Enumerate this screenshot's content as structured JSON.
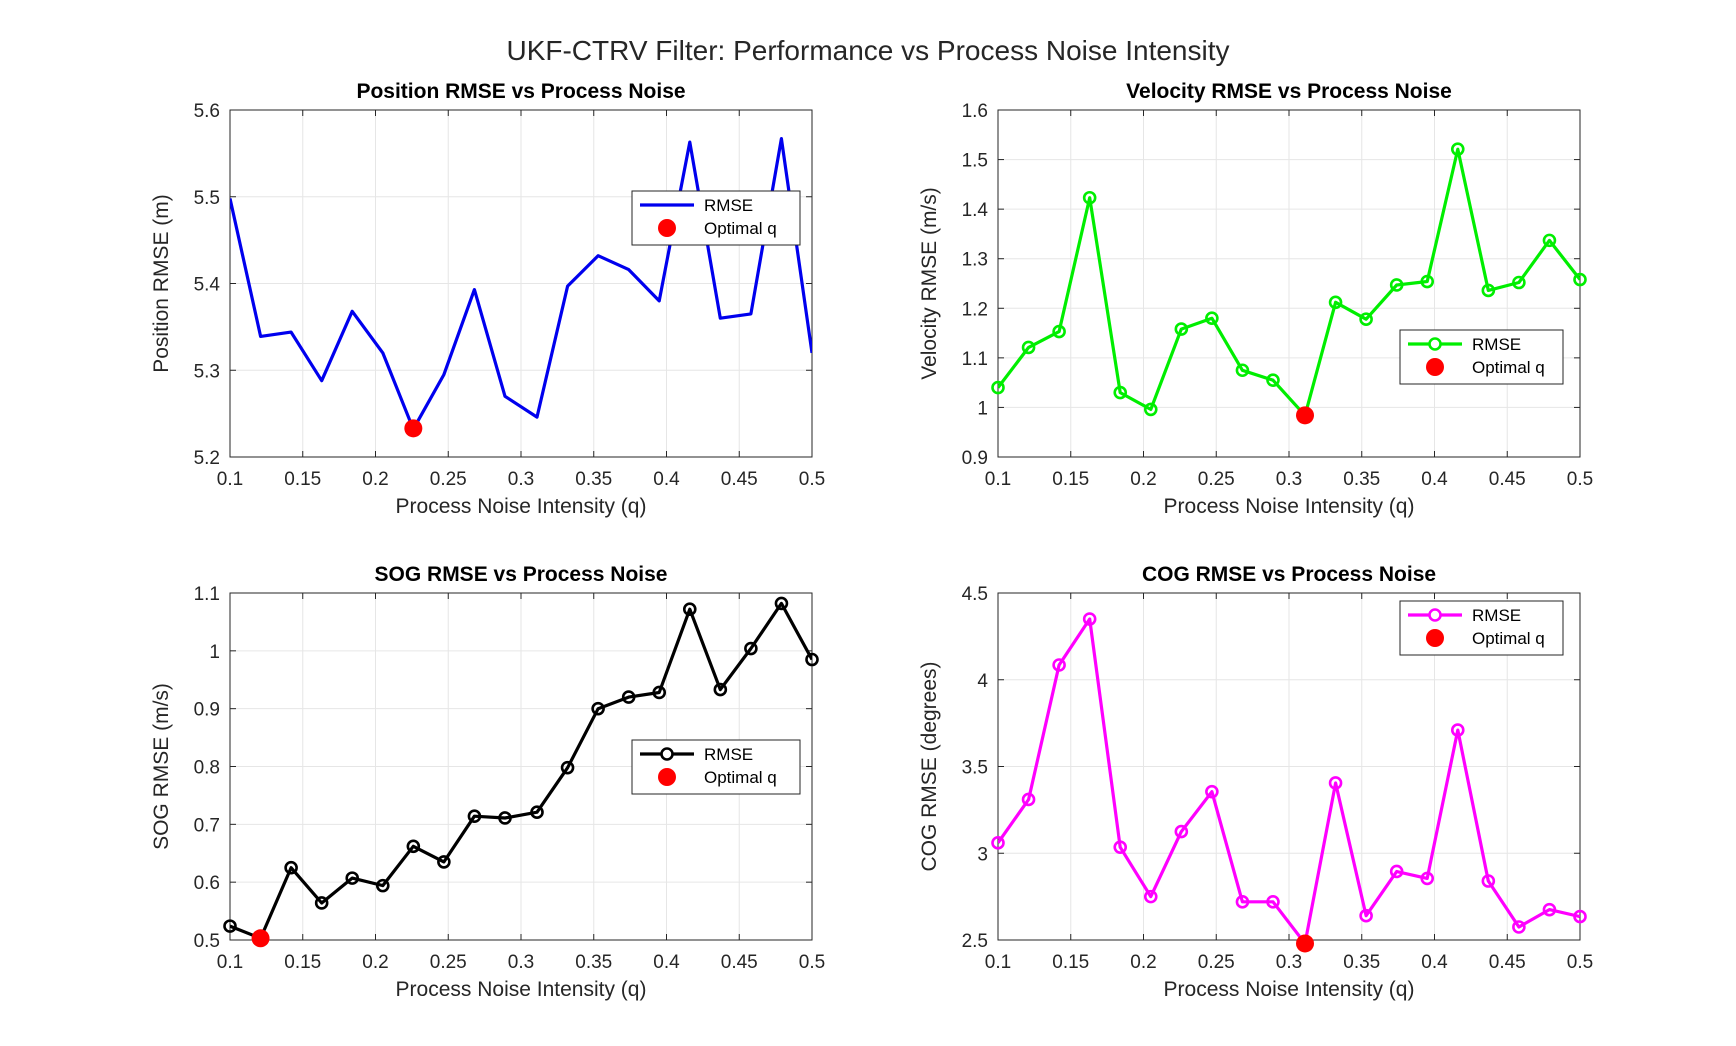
{
  "figure": {
    "title": "UKF-CTRV Filter: Performance vs Process Noise Intensity"
  },
  "chart_data": [
    {
      "type": "line",
      "id": "position",
      "title": "Position RMSE vs Process Noise",
      "xlabel": "Process Noise Intensity (q)",
      "ylabel": "Position RMSE (m)",
      "xlim": [
        0.1,
        0.5
      ],
      "ylim": [
        5.2,
        5.6
      ],
      "xticks": [
        0.1,
        0.15,
        0.2,
        0.25,
        0.3,
        0.35,
        0.4,
        0.45,
        0.5
      ],
      "xtick_labels": [
        "0.1",
        "0.15",
        "0.2",
        "0.25",
        "0.3",
        "0.35",
        "0.4",
        "0.45",
        "0.5"
      ],
      "yticks": [
        5.2,
        5.3,
        5.4,
        5.5,
        5.6
      ],
      "ytick_labels": [
        "5.2",
        "5.3",
        "5.4",
        "5.5",
        "5.6"
      ],
      "grid": true,
      "legend_position": "upper-right",
      "x": [
        0.1,
        0.121,
        0.142,
        0.163,
        0.184,
        0.205,
        0.226,
        0.247,
        0.268,
        0.289,
        0.311,
        0.332,
        0.353,
        0.374,
        0.395,
        0.416,
        0.437,
        0.458,
        0.479,
        0.5
      ],
      "series": [
        {
          "name": "RMSE",
          "color": "#0000ee",
          "marker": "none",
          "values": [
            5.498,
            5.339,
            5.344,
            5.288,
            5.368,
            5.32,
            5.232,
            5.295,
            5.393,
            5.27,
            5.246,
            5.397,
            5.432,
            5.416,
            5.38,
            5.563,
            5.36,
            5.365,
            5.567,
            5.32
          ]
        },
        {
          "name": "Optimal q",
          "color": "#ff0000",
          "marker": "filled-circle",
          "x": [
            0.226
          ],
          "values": [
            5.233
          ]
        }
      ]
    },
    {
      "type": "line",
      "id": "velocity",
      "title": "Velocity RMSE vs Process Noise",
      "xlabel": "Process Noise Intensity (q)",
      "ylabel": "Velocity RMSE (m/s)",
      "xlim": [
        0.1,
        0.5
      ],
      "ylim": [
        0.9,
        1.6
      ],
      "xticks": [
        0.1,
        0.15,
        0.2,
        0.25,
        0.3,
        0.35,
        0.4,
        0.45,
        0.5
      ],
      "xtick_labels": [
        "0.1",
        "0.15",
        "0.2",
        "0.25",
        "0.3",
        "0.35",
        "0.4",
        "0.45",
        "0.5"
      ],
      "yticks": [
        0.9,
        1.0,
        1.1,
        1.2,
        1.3,
        1.4,
        1.5,
        1.6
      ],
      "ytick_labels": [
        "0.9",
        "1",
        "1.1",
        "1.2",
        "1.3",
        "1.4",
        "1.5",
        "1.6"
      ],
      "grid": true,
      "legend_position": "right",
      "x": [
        0.1,
        0.121,
        0.142,
        0.163,
        0.184,
        0.205,
        0.226,
        0.247,
        0.268,
        0.289,
        0.311,
        0.332,
        0.353,
        0.374,
        0.395,
        0.416,
        0.437,
        0.458,
        0.479,
        0.5
      ],
      "series": [
        {
          "name": "RMSE",
          "color": "#00ee00",
          "marker": "open-circle",
          "values": [
            1.04,
            1.121,
            1.153,
            1.423,
            1.03,
            0.996,
            1.158,
            1.18,
            1.075,
            1.055,
            0.984,
            1.212,
            1.178,
            1.247,
            1.254,
            1.521,
            1.236,
            1.252,
            1.337,
            1.258
          ]
        },
        {
          "name": "Optimal q",
          "color": "#ff0000",
          "marker": "filled-circle",
          "x": [
            0.311
          ],
          "values": [
            0.984
          ]
        }
      ]
    },
    {
      "type": "line",
      "id": "sog",
      "title": "SOG RMSE vs Process Noise",
      "xlabel": "Process Noise Intensity (q)",
      "ylabel": "SOG RMSE (m/s)",
      "xlim": [
        0.1,
        0.5
      ],
      "ylim": [
        0.5,
        1.1
      ],
      "xticks": [
        0.1,
        0.15,
        0.2,
        0.25,
        0.3,
        0.35,
        0.4,
        0.45,
        0.5
      ],
      "xtick_labels": [
        "0.1",
        "0.15",
        "0.2",
        "0.25",
        "0.3",
        "0.35",
        "0.4",
        "0.45",
        "0.5"
      ],
      "yticks": [
        0.5,
        0.6,
        0.7,
        0.8,
        0.9,
        1.0,
        1.1
      ],
      "ytick_labels": [
        "0.5",
        "0.6",
        "0.7",
        "0.8",
        "0.9",
        "1",
        "1.1"
      ],
      "grid": true,
      "legend_position": "right",
      "x": [
        0.1,
        0.121,
        0.142,
        0.163,
        0.184,
        0.205,
        0.226,
        0.247,
        0.268,
        0.289,
        0.311,
        0.332,
        0.353,
        0.374,
        0.395,
        0.416,
        0.437,
        0.458,
        0.479,
        0.5
      ],
      "series": [
        {
          "name": "RMSE",
          "color": "#000000",
          "marker": "open-circle",
          "values": [
            0.524,
            0.503,
            0.625,
            0.564,
            0.607,
            0.594,
            0.662,
            0.635,
            0.714,
            0.711,
            0.721,
            0.798,
            0.9,
            0.92,
            0.928,
            1.072,
            0.933,
            1.004,
            1.082,
            0.985
          ]
        },
        {
          "name": "Optimal q",
          "color": "#ff0000",
          "marker": "filled-circle",
          "x": [
            0.121
          ],
          "values": [
            0.503
          ]
        }
      ]
    },
    {
      "type": "line",
      "id": "cog",
      "title": "COG RMSE vs Process Noise",
      "xlabel": "Process Noise Intensity (q)",
      "ylabel": "COG RMSE (degrees)",
      "xlim": [
        0.1,
        0.5
      ],
      "ylim": [
        2.5,
        4.5
      ],
      "xticks": [
        0.1,
        0.15,
        0.2,
        0.25,
        0.3,
        0.35,
        0.4,
        0.45,
        0.5
      ],
      "xtick_labels": [
        "0.1",
        "0.15",
        "0.2",
        "0.25",
        "0.3",
        "0.35",
        "0.4",
        "0.45",
        "0.5"
      ],
      "yticks": [
        2.5,
        3.0,
        3.5,
        4.0,
        4.5
      ],
      "ytick_labels": [
        "2.5",
        "3",
        "3.5",
        "4",
        "4.5"
      ],
      "grid": true,
      "legend_position": "upper-right",
      "x": [
        0.1,
        0.121,
        0.142,
        0.163,
        0.184,
        0.205,
        0.226,
        0.247,
        0.268,
        0.289,
        0.311,
        0.332,
        0.353,
        0.374,
        0.395,
        0.416,
        0.437,
        0.458,
        0.479,
        0.5
      ],
      "series": [
        {
          "name": "RMSE",
          "color": "#ff00ff",
          "marker": "open-circle",
          "values": [
            3.06,
            3.31,
            4.085,
            4.35,
            3.035,
            2.75,
            3.125,
            3.355,
            2.72,
            2.72,
            2.48,
            3.405,
            2.64,
            2.895,
            2.855,
            3.71,
            2.84,
            2.575,
            2.675,
            2.635
          ]
        },
        {
          "name": "Optimal q",
          "color": "#ff0000",
          "marker": "filled-circle",
          "x": [
            0.311
          ],
          "values": [
            2.48
          ]
        }
      ]
    }
  ]
}
